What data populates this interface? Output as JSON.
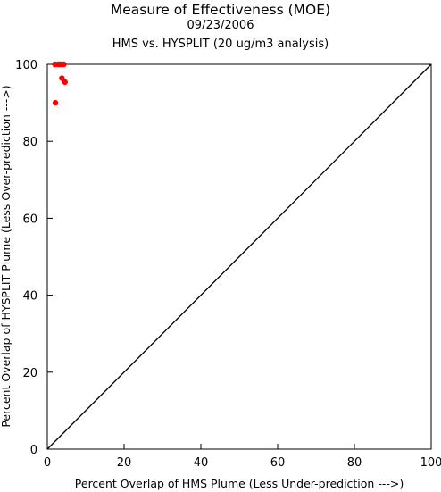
{
  "chart_data": {
    "type": "scatter",
    "title": "Measure of Effectiveness (MOE)",
    "date": "09/23/2006",
    "subtitle": "HMS vs. HYSPLIT  (20 ug/m3 analysis)",
    "xlabel": "Percent Overlap of HMS Plume (Less Under-prediction --->)",
    "ylabel": "Percent Overlap of HYSPLIT Plume (Less Over-prediction --->)",
    "xlim": [
      0,
      100
    ],
    "ylim": [
      0,
      100
    ],
    "xticks": [
      "0",
      "20",
      "40",
      "60",
      "80",
      "100"
    ],
    "yticks": [
      "0",
      "20",
      "40",
      "60",
      "80",
      "100"
    ],
    "grid": false,
    "reference_line": {
      "x": [
        0,
        100
      ],
      "y": [
        0,
        100
      ]
    },
    "series": [
      {
        "color": "#ff0000",
        "points": [
          {
            "x": 2.0,
            "y": 100
          },
          {
            "x": 2.8,
            "y": 100
          },
          {
            "x": 3.3,
            "y": 100
          },
          {
            "x": 3.6,
            "y": 100
          },
          {
            "x": 4.3,
            "y": 100
          },
          {
            "x": 3.8,
            "y": 96.4
          },
          {
            "x": 4.6,
            "y": 95.4
          },
          {
            "x": 2.1,
            "y": 90.0
          }
        ]
      }
    ]
  }
}
